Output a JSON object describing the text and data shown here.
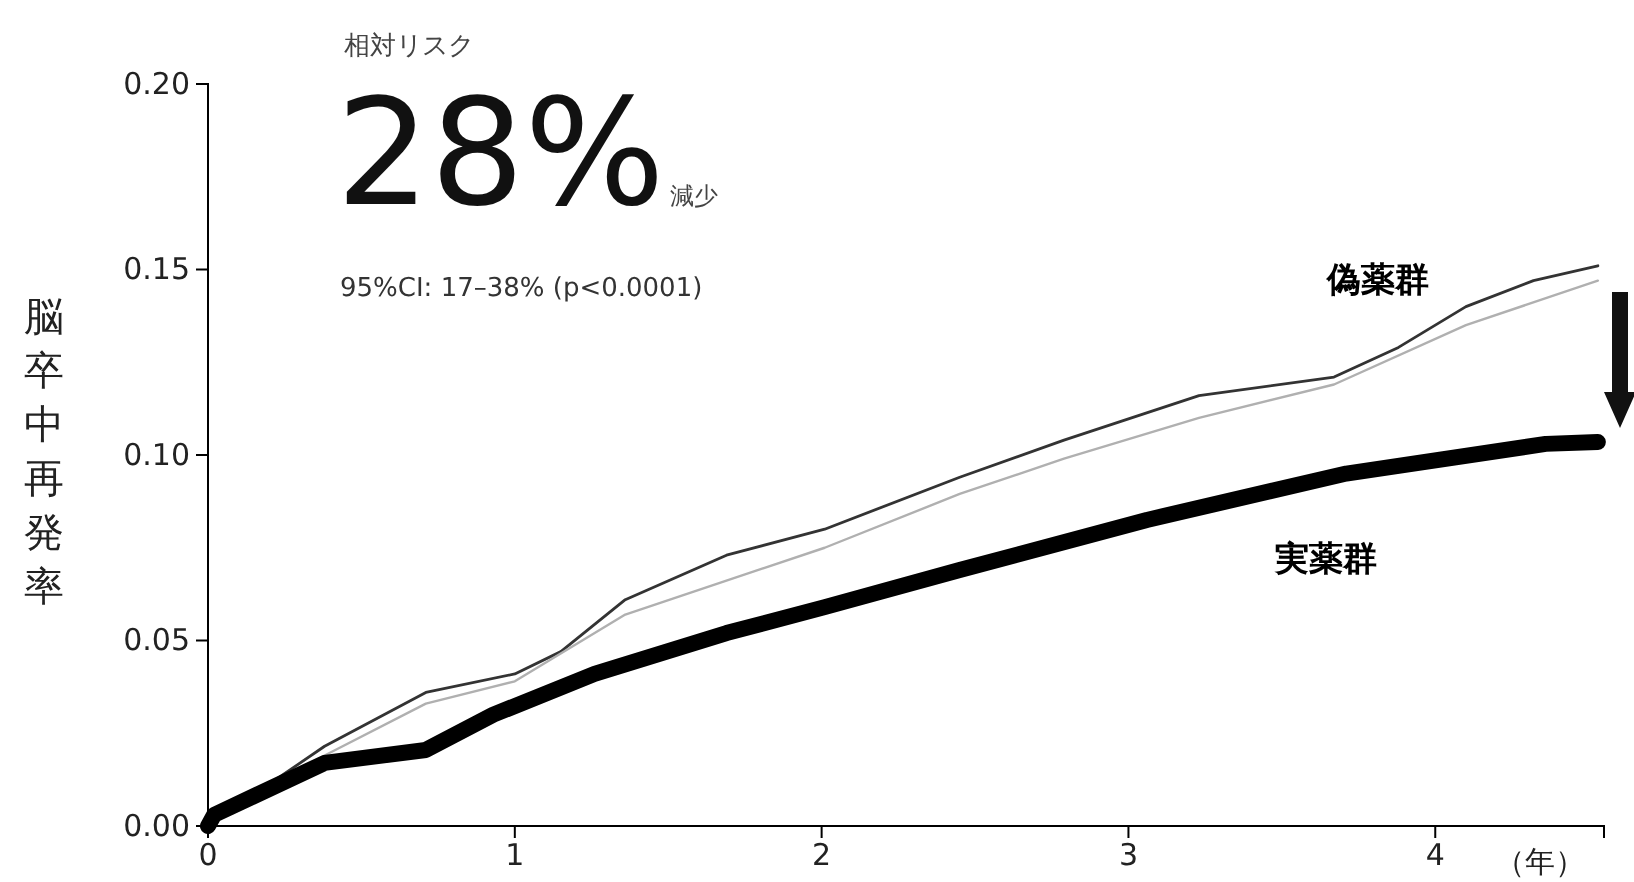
{
  "chart_data": {
    "type": "line",
    "title": "相対リスク",
    "annotations": [
      "28%",
      "減少",
      "95%CI: 17–38% (p<0.0001)"
    ],
    "xlabel": "（年）",
    "ylabel": "脳卒中再発率",
    "xlim": [
      0,
      4.55
    ],
    "xticks": [
      0,
      1,
      2,
      3,
      4
    ],
    "ylim": [
      0,
      0.2
    ],
    "yticks": [
      {
        "value": 0,
        "label": "0.00"
      },
      {
        "value": 0.05,
        "label": "0.05"
      },
      {
        "value": 0.1,
        "label": "0.10"
      },
      {
        "value": 0.15,
        "label": "0.15"
      },
      {
        "value": 0.2,
        "label": "0.20"
      }
    ],
    "grid": false,
    "legend": false,
    "marker": "none",
    "line_style": "solid",
    "series": [
      {
        "name": "偽薬群",
        "color": "#333333",
        "x": [
          0,
          0.38,
          0.71,
          1.0,
          1.15,
          1.36,
          1.69,
          2.01,
          2.45,
          2.79,
          3.23,
          3.67,
          3.88,
          4.1,
          4.32,
          4.53
        ],
        "values": [
          0,
          0.0215,
          0.036,
          0.041,
          0.047,
          0.061,
          0.073,
          0.08,
          0.094,
          0.104,
          0.116,
          0.121,
          0.129,
          0.14,
          0.147,
          0.151
        ]
      },
      {
        "color": "#b0b0b0",
        "x": [
          0,
          0.38,
          0.71,
          1.0,
          1.36,
          2.01,
          2.45,
          2.79,
          3.23,
          3.67,
          4.1,
          4.53
        ],
        "values": [
          0,
          0.019,
          0.033,
          0.039,
          0.057,
          0.075,
          0.0895,
          0.099,
          0.11,
          0.119,
          0.135,
          0.147
        ]
      },
      {
        "name": "実薬群",
        "color": "#000000",
        "x": [
          0,
          0.02,
          0.38,
          0.71,
          0.93,
          1.26,
          1.69,
          2.01,
          2.45,
          3.06,
          3.71,
          4.36,
          4.53
        ],
        "values": [
          0,
          0.003,
          0.017,
          0.0205,
          0.03,
          0.041,
          0.052,
          0.059,
          0.069,
          0.0825,
          0.095,
          0.103,
          0.1035
        ]
      }
    ]
  }
}
